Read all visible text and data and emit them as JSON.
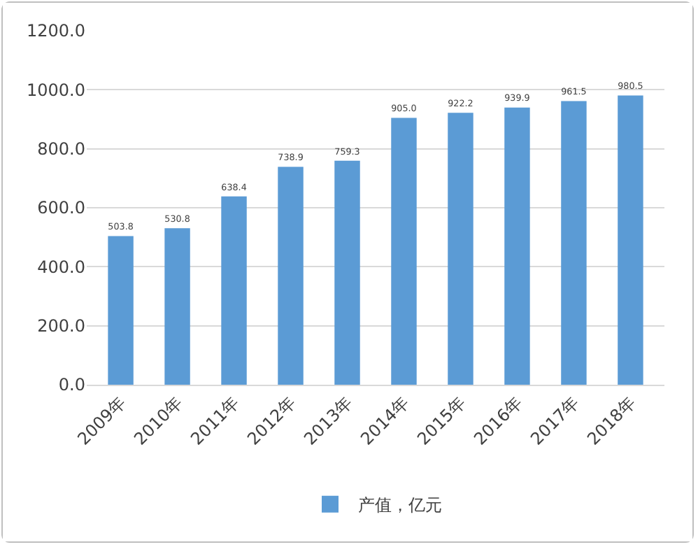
{
  "chart_data": {
    "type": "bar",
    "categories": [
      "2009年",
      "2010年",
      "2011年",
      "2012年",
      "2013年",
      "2014年",
      "2015年",
      "2016年",
      "2017年",
      "2018年"
    ],
    "series": [
      {
        "name": "产值，亿元",
        "color": "#5b9bd5",
        "values": [
          503.8,
          530.8,
          638.4,
          738.9,
          759.3,
          905.0,
          922.2,
          939.9,
          961.5,
          980.5
        ],
        "value_labels": [
          "503.8",
          "530.8",
          "638.4",
          "738.9",
          "759.3",
          "905.0",
          "922.2",
          "939.9",
          "961.5",
          "980.5"
        ]
      }
    ],
    "ylim": [
      0,
      1200
    ],
    "yticks": [
      {
        "value": 0,
        "label": "0.0"
      },
      {
        "value": 200,
        "label": "200.0"
      },
      {
        "value": 400,
        "label": "400.0"
      },
      {
        "value": 600,
        "label": "600.0"
      },
      {
        "value": 800,
        "label": "800.0"
      },
      {
        "value": 1000,
        "label": "1000.0"
      },
      {
        "value": 1200,
        "label": "1200.0"
      }
    ],
    "grid": "y",
    "legend": "bottom"
  }
}
